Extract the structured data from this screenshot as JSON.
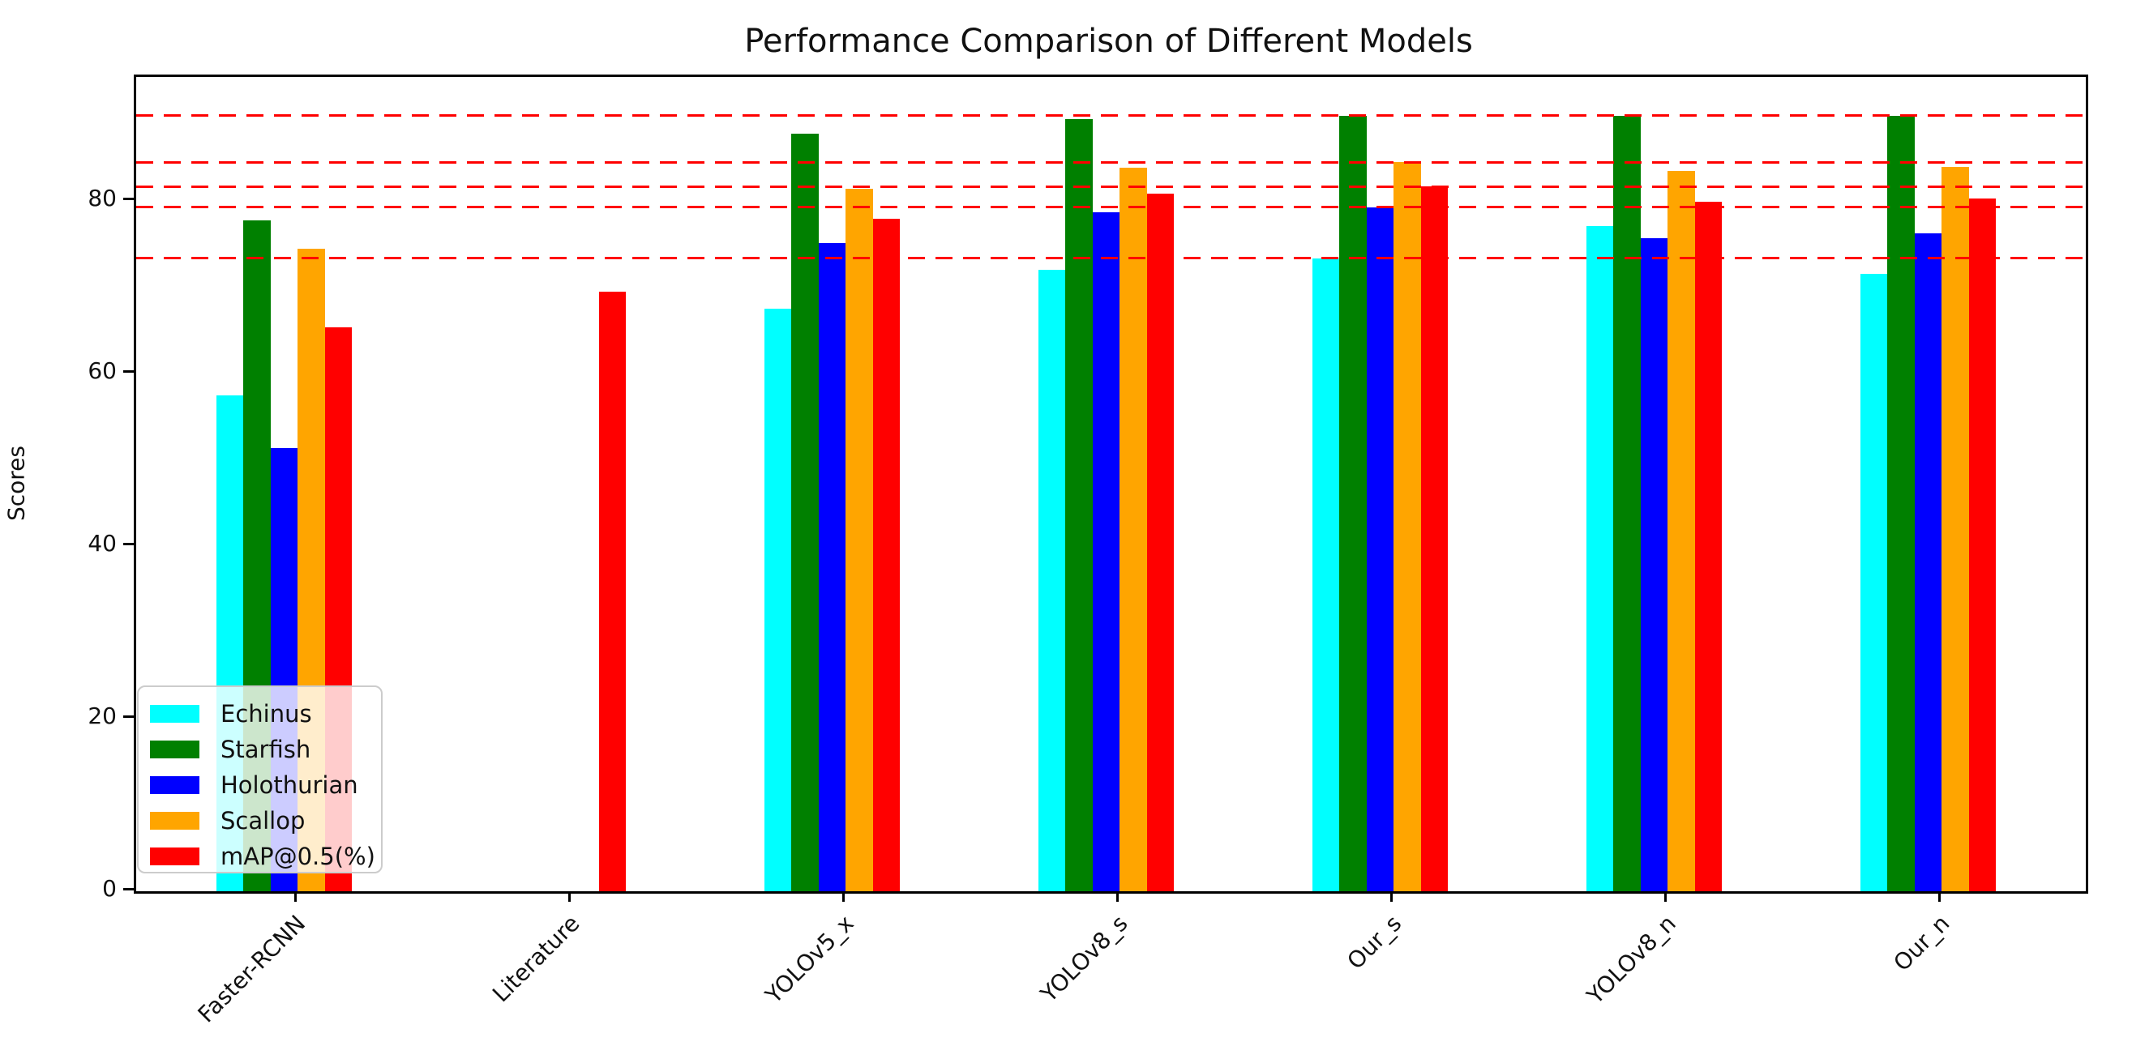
{
  "title": "Performance Comparison of Different Models",
  "ylabel": "Scores",
  "chart_data": {
    "type": "bar",
    "title": "Performance Comparison of Different Models",
    "xlabel": "",
    "ylabel": "Scores",
    "categories": [
      "Faster-RCNN",
      "Literature",
      "YOLOv5_x",
      "YOLOv8_s",
      "Our_s",
      "YOLOv8_n",
      "Our_n"
    ],
    "series": [
      {
        "name": "Echinus",
        "color": "#00ffff",
        "values": [
          57.5,
          null,
          67.5,
          72.0,
          73.4,
          77.1,
          71.6
        ]
      },
      {
        "name": "Starfish",
        "color": "#008000",
        "values": [
          77.8,
          null,
          87.8,
          89.5,
          89.9,
          89.9,
          89.9
        ]
      },
      {
        "name": "Holothurian",
        "color": "#0000ff",
        "values": [
          51.4,
          null,
          75.1,
          78.7,
          79.3,
          75.7,
          76.3
        ]
      },
      {
        "name": "Scallop",
        "color": "#ffa500",
        "values": [
          74.5,
          null,
          81.4,
          83.9,
          84.5,
          83.5,
          84.0
        ]
      },
      {
        "name": "mAP@0.5(%)",
        "color": "#ff0000",
        "values": [
          65.4,
          69.5,
          78.0,
          80.9,
          81.7,
          79.9,
          80.3
        ]
      }
    ],
    "reference_lines": {
      "color": "#ff0000",
      "style": "dashed",
      "values": [
        89.9,
        84.5,
        81.7,
        79.3,
        73.4
      ]
    },
    "yticks": [
      0,
      20,
      40,
      60,
      80
    ],
    "ylim": [
      0,
      94.4
    ],
    "grid": false,
    "legend_position": "lower left",
    "legend_entries": [
      "Echinus",
      "Starfish",
      "Holothurian",
      "Scallop",
      "mAP@0.5(%)"
    ]
  }
}
